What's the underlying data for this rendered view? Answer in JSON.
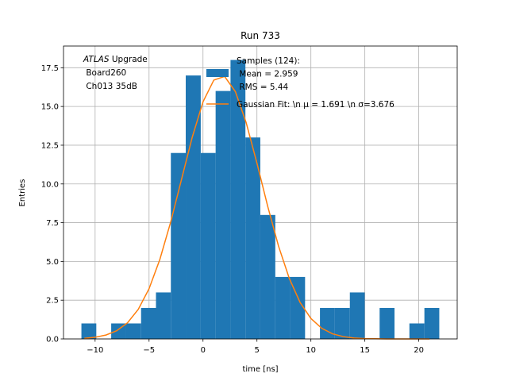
{
  "chart_data": {
    "type": "histogram",
    "title": "Run 733",
    "xlabel": "time [ns]",
    "ylabel": "Entries",
    "annotation": [
      "ATLAS Upgrade",
      "Board260",
      "Ch013 35dB"
    ],
    "annotation_italic": "ATLAS",
    "bins": [
      -11.27,
      -9.89,
      -8.51,
      -7.12,
      -5.74,
      -4.36,
      -2.98,
      -1.6,
      -0.21,
      1.17,
      2.55,
      3.93,
      5.31,
      6.7,
      8.08,
      9.46,
      10.84,
      12.22,
      13.61,
      14.99,
      16.37,
      17.75,
      19.13,
      20.52,
      21.9
    ],
    "series": [
      {
        "name": "Samples (124):\n Mean = 2.959\n RMS = 5.44",
        "color": "#1f77b4",
        "values": [
          1,
          0,
          1,
          1,
          2,
          3,
          12,
          17,
          12,
          16,
          18,
          13,
          8,
          4,
          4,
          0,
          2,
          2,
          3,
          0,
          2,
          0,
          1,
          2
        ]
      },
      {
        "name": "Gaussian Fit: \\n μ = 1.691 \\n σ=3.676",
        "color": "#ff7f0e",
        "type": "line",
        "x": [
          -11,
          -10,
          -9,
          -8,
          -7,
          -6,
          -5,
          -4,
          -3,
          -2,
          -1,
          0,
          1,
          2,
          3,
          4,
          5,
          6,
          7,
          8,
          9,
          10,
          11,
          12,
          13,
          14,
          15,
          16,
          17,
          18,
          19,
          20,
          21
        ],
        "values": [
          0.04,
          0.11,
          0.25,
          0.53,
          1.04,
          1.91,
          3.24,
          5.13,
          7.53,
          10.27,
          13.01,
          15.3,
          16.7,
          16.94,
          15.96,
          13.96,
          11.34,
          8.55,
          5.99,
          3.9,
          2.35,
          1.32,
          0.69,
          0.33,
          0.15,
          0.06,
          0.02,
          0.01,
          0,
          0,
          0,
          0,
          0
        ]
      }
    ],
    "xlim": [
      -12.93,
      23.56
    ],
    "ylim": [
      0,
      18.9
    ],
    "xticks": [
      {
        "value": -10,
        "label": "−10"
      },
      {
        "value": -5,
        "label": "−5"
      },
      0,
      5,
      10,
      15,
      20
    ],
    "yticks": [
      {
        "value": 0,
        "label": "0.0"
      },
      2.5,
      {
        "value": 5,
        "label": "5.0"
      },
      7.5,
      {
        "value": 10,
        "label": "10.0"
      },
      12.5,
      {
        "value": 15,
        "label": "15.0"
      },
      17.5
    ],
    "grid": true
  }
}
